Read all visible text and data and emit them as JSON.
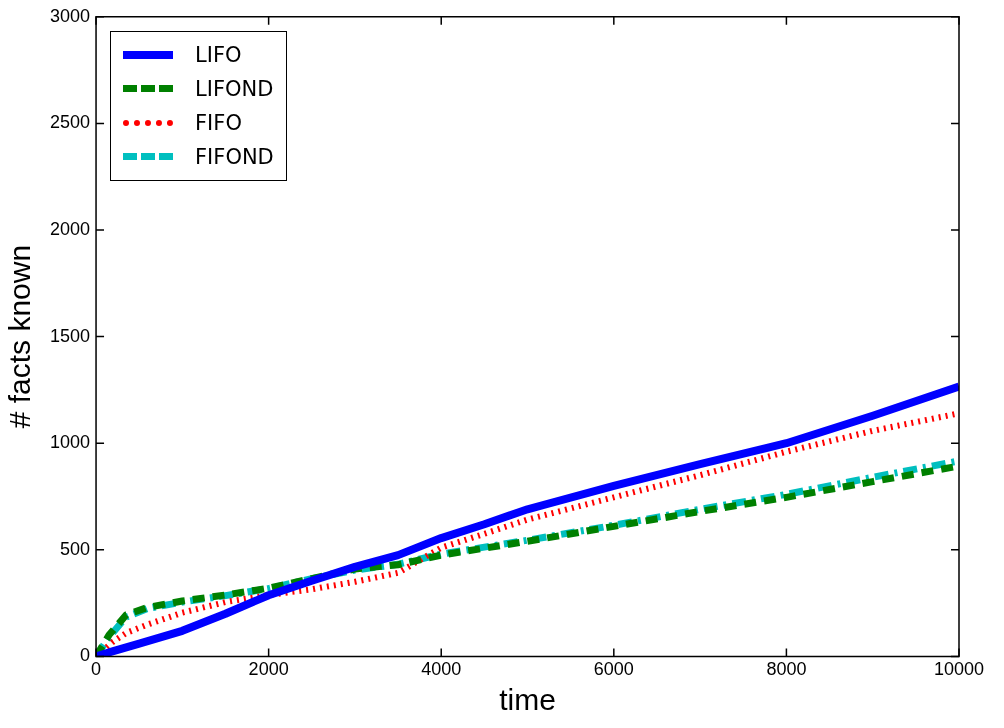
{
  "chart_data": {
    "type": "line",
    "xlabel": "time",
    "ylabel": "# facts known",
    "xlim": [
      0,
      10000
    ],
    "xticks": [
      0,
      2000,
      4000,
      6000,
      8000,
      10000
    ],
    "ylim": [
      0,
      3000
    ],
    "yticks": [
      0,
      500,
      1000,
      1500,
      2000,
      2500,
      3000
    ],
    "grid": false,
    "legend": "top left",
    "marker": "none",
    "series": [
      {
        "name": "LIFO",
        "color": "#0000ff",
        "line_style": "solid",
        "x": [
          0,
          200,
          500,
          1000,
          1500,
          2000,
          2500,
          3000,
          3500,
          4000,
          4500,
          5000,
          6000,
          7000,
          8000,
          9000,
          10000
        ],
        "values": [
          0,
          25,
          60,
          120,
          200,
          287,
          355,
          420,
          475,
          555,
          620,
          690,
          800,
          902,
          1000,
          1129,
          1266
        ]
      },
      {
        "name": "LIFOND",
        "color": "#008000",
        "line_style": "dashed",
        "x": [
          0,
          150,
          350,
          600,
          1000,
          1500,
          2000,
          2500,
          3000,
          3500,
          4000,
          5000,
          6000,
          7000,
          8000,
          9000,
          10000
        ],
        "values": [
          0,
          100,
          195,
          230,
          260,
          288,
          320,
          365,
          410,
          430,
          475,
          540,
          610,
          680,
          746,
          820,
          893
        ]
      },
      {
        "name": "FIFO",
        "color": "#ff0000",
        "line_style": "dotted",
        "x": [
          0,
          200,
          350,
          600,
          1000,
          1500,
          2000,
          2500,
          3000,
          3500,
          4000,
          4500,
          5000,
          6000,
          7000,
          8000,
          9000,
          10000
        ],
        "values": [
          0,
          70,
          110,
          150,
          205,
          255,
          288,
          315,
          350,
          392,
          510,
          575,
          642,
          746,
          850,
          960,
          1058,
          1140
        ]
      },
      {
        "name": "FIFOND",
        "color": "#00bfbf",
        "line_style": "dashdot",
        "x": [
          0,
          150,
          350,
          600,
          1000,
          1500,
          2000,
          2500,
          3000,
          3500,
          4000,
          5000,
          6000,
          7000,
          8000,
          9000,
          10000
        ],
        "values": [
          0,
          90,
          185,
          225,
          255,
          285,
          318,
          365,
          405,
          432,
          480,
          545,
          615,
          690,
          760,
          840,
          917
        ]
      }
    ]
  }
}
